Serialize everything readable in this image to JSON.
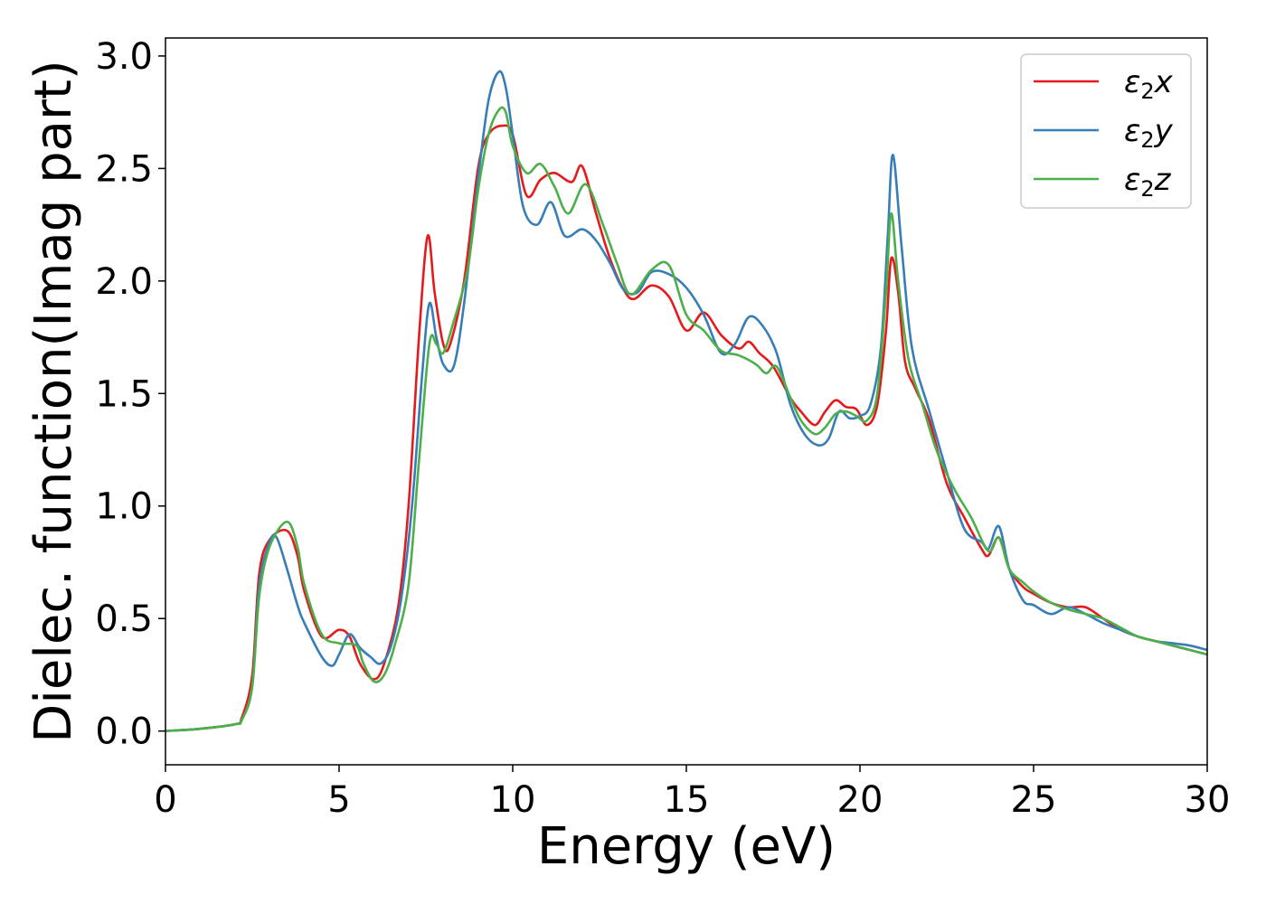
{
  "chart_data": {
    "type": "line",
    "xlabel": "Energy (eV)",
    "ylabel": "Dielec. function(Imag part)",
    "xlim": [
      0,
      30
    ],
    "ylim": [
      -0.15,
      3.08
    ],
    "xticks": [
      0,
      5,
      10,
      15,
      20,
      25,
      30
    ],
    "xtick_labels": [
      "0",
      "5",
      "10",
      "15",
      "20",
      "25",
      "30"
    ],
    "yticks": [
      0.0,
      0.5,
      1.0,
      1.5,
      2.0,
      2.5,
      3.0
    ],
    "ytick_labels": [
      "0.0",
      "0.5",
      "1.0",
      "1.5",
      "2.0",
      "2.5",
      "3.0"
    ],
    "grid": false,
    "legend_position": "top-right",
    "series": [
      {
        "name": "ε₂x",
        "legend_base": "ε",
        "legend_sub": "2",
        "legend_suffix": "x",
        "color": "#e41a1c",
        "x": [
          0,
          1,
          2,
          2.2,
          2.5,
          2.7,
          3.0,
          3.5,
          3.8,
          4.0,
          4.5,
          5.0,
          5.3,
          5.6,
          6.0,
          6.3,
          6.7,
          7.0,
          7.3,
          7.55,
          7.75,
          8.0,
          8.2,
          8.6,
          9.0,
          9.3,
          9.7,
          10.0,
          10.4,
          10.8,
          11.2,
          11.7,
          12.0,
          12.4,
          12.8,
          13.2,
          13.5,
          14.0,
          14.5,
          15.0,
          15.5,
          16.0,
          16.5,
          16.8,
          17.1,
          17.5,
          18.0,
          18.3,
          18.7,
          19.0,
          19.3,
          19.6,
          19.9,
          20.2,
          20.5,
          20.75,
          20.9,
          21.1,
          21.3,
          21.6,
          22.0,
          22.5,
          23.0,
          23.5,
          23.7,
          24.0,
          24.3,
          24.7,
          25.0,
          25.5,
          26.0,
          26.5,
          27.0,
          27.5,
          28.0,
          28.5,
          29.0,
          29.5,
          30.0
        ],
        "y": [
          0.0,
          0.01,
          0.03,
          0.06,
          0.25,
          0.7,
          0.85,
          0.89,
          0.78,
          0.62,
          0.42,
          0.45,
          0.42,
          0.3,
          0.23,
          0.3,
          0.55,
          1.0,
          1.75,
          2.2,
          1.95,
          1.72,
          1.72,
          2.0,
          2.5,
          2.65,
          2.69,
          2.65,
          2.38,
          2.45,
          2.48,
          2.44,
          2.51,
          2.3,
          2.1,
          1.96,
          1.92,
          1.98,
          1.93,
          1.78,
          1.86,
          1.76,
          1.7,
          1.73,
          1.68,
          1.62,
          1.48,
          1.42,
          1.36,
          1.42,
          1.47,
          1.44,
          1.43,
          1.36,
          1.45,
          1.78,
          2.1,
          1.95,
          1.64,
          1.52,
          1.38,
          1.1,
          0.95,
          0.81,
          0.78,
          0.86,
          0.72,
          0.64,
          0.61,
          0.57,
          0.55,
          0.55,
          0.5,
          0.45,
          0.42,
          0.4,
          0.38,
          0.36,
          0.34
        ]
      },
      {
        "name": "ε₂y",
        "legend_base": "ε",
        "legend_sub": "2",
        "legend_suffix": "y",
        "color": "#377eb8",
        "x": [
          0,
          1,
          2,
          2.2,
          2.5,
          2.7,
          3.0,
          3.2,
          3.5,
          3.8,
          4.0,
          4.5,
          4.8,
          5.0,
          5.3,
          5.6,
          5.9,
          6.2,
          6.5,
          6.8,
          7.1,
          7.4,
          7.6,
          7.8,
          8.0,
          8.3,
          8.6,
          9.0,
          9.3,
          9.6,
          9.8,
          10.0,
          10.3,
          10.7,
          11.1,
          11.5,
          12.0,
          12.4,
          12.8,
          13.2,
          13.6,
          14.0,
          14.5,
          15.0,
          15.5,
          16.0,
          16.4,
          16.8,
          17.2,
          17.6,
          18.0,
          18.4,
          18.8,
          19.1,
          19.4,
          19.7,
          20.0,
          20.3,
          20.6,
          20.8,
          20.95,
          21.2,
          21.5,
          22.0,
          22.5,
          23.0,
          23.5,
          23.7,
          24.0,
          24.3,
          24.7,
          25.0,
          25.5,
          26.0,
          26.5,
          27.0,
          27.5,
          28.0,
          28.5,
          29.0,
          29.5,
          30.0
        ],
        "y": [
          0.0,
          0.01,
          0.03,
          0.05,
          0.2,
          0.65,
          0.84,
          0.86,
          0.72,
          0.56,
          0.48,
          0.33,
          0.29,
          0.34,
          0.43,
          0.37,
          0.33,
          0.3,
          0.38,
          0.6,
          1.0,
          1.6,
          1.9,
          1.75,
          1.63,
          1.62,
          1.9,
          2.45,
          2.8,
          2.93,
          2.86,
          2.65,
          2.33,
          2.25,
          2.35,
          2.2,
          2.23,
          2.18,
          2.08,
          1.96,
          1.95,
          2.04,
          2.03,
          1.97,
          1.85,
          1.68,
          1.72,
          1.84,
          1.8,
          1.68,
          1.45,
          1.32,
          1.27,
          1.3,
          1.42,
          1.39,
          1.4,
          1.45,
          1.7,
          2.2,
          2.56,
          2.15,
          1.7,
          1.42,
          1.15,
          0.9,
          0.84,
          0.81,
          0.91,
          0.72,
          0.58,
          0.56,
          0.52,
          0.55,
          0.52,
          0.48,
          0.45,
          0.42,
          0.4,
          0.39,
          0.38,
          0.36
        ]
      },
      {
        "name": "ε₂z",
        "legend_base": "ε",
        "legend_sub": "2",
        "legend_suffix": "z",
        "color": "#4daf4a",
        "x": [
          0,
          1,
          2,
          2.2,
          2.5,
          2.7,
          3.0,
          3.5,
          3.8,
          4.0,
          4.5,
          5.0,
          5.5,
          5.7,
          6.0,
          6.3,
          6.6,
          7.0,
          7.3,
          7.6,
          7.8,
          8.0,
          8.3,
          8.7,
          9.0,
          9.3,
          9.6,
          9.8,
          10.0,
          10.4,
          10.8,
          11.2,
          11.6,
          12.1,
          12.6,
          13.0,
          13.4,
          14.0,
          14.5,
          15.0,
          15.5,
          16.0,
          16.5,
          17.0,
          17.3,
          17.6,
          18.0,
          18.3,
          18.7,
          19.0,
          19.3,
          19.6,
          19.9,
          20.2,
          20.5,
          20.75,
          20.9,
          21.1,
          21.4,
          21.8,
          22.2,
          22.7,
          23.2,
          23.7,
          24.0,
          24.3,
          24.7,
          25.0,
          25.5,
          26.0,
          26.5,
          27.0,
          27.5,
          28.0,
          28.5,
          29.0,
          29.5,
          30.0
        ],
        "y": [
          0.0,
          0.01,
          0.03,
          0.05,
          0.2,
          0.6,
          0.82,
          0.93,
          0.82,
          0.65,
          0.43,
          0.39,
          0.38,
          0.3,
          0.22,
          0.25,
          0.38,
          0.65,
          1.2,
          1.72,
          1.72,
          1.68,
          1.82,
          2.05,
          2.4,
          2.65,
          2.76,
          2.75,
          2.6,
          2.48,
          2.52,
          2.42,
          2.3,
          2.43,
          2.25,
          2.08,
          1.94,
          2.05,
          2.07,
          1.85,
          1.78,
          1.69,
          1.67,
          1.63,
          1.59,
          1.62,
          1.48,
          1.38,
          1.32,
          1.35,
          1.41,
          1.42,
          1.4,
          1.38,
          1.5,
          1.95,
          2.3,
          2.0,
          1.65,
          1.45,
          1.25,
          1.08,
          0.95,
          0.8,
          0.86,
          0.72,
          0.66,
          0.62,
          0.57,
          0.54,
          0.52,
          0.5,
          0.46,
          0.42,
          0.4,
          0.38,
          0.36,
          0.34
        ]
      }
    ]
  }
}
